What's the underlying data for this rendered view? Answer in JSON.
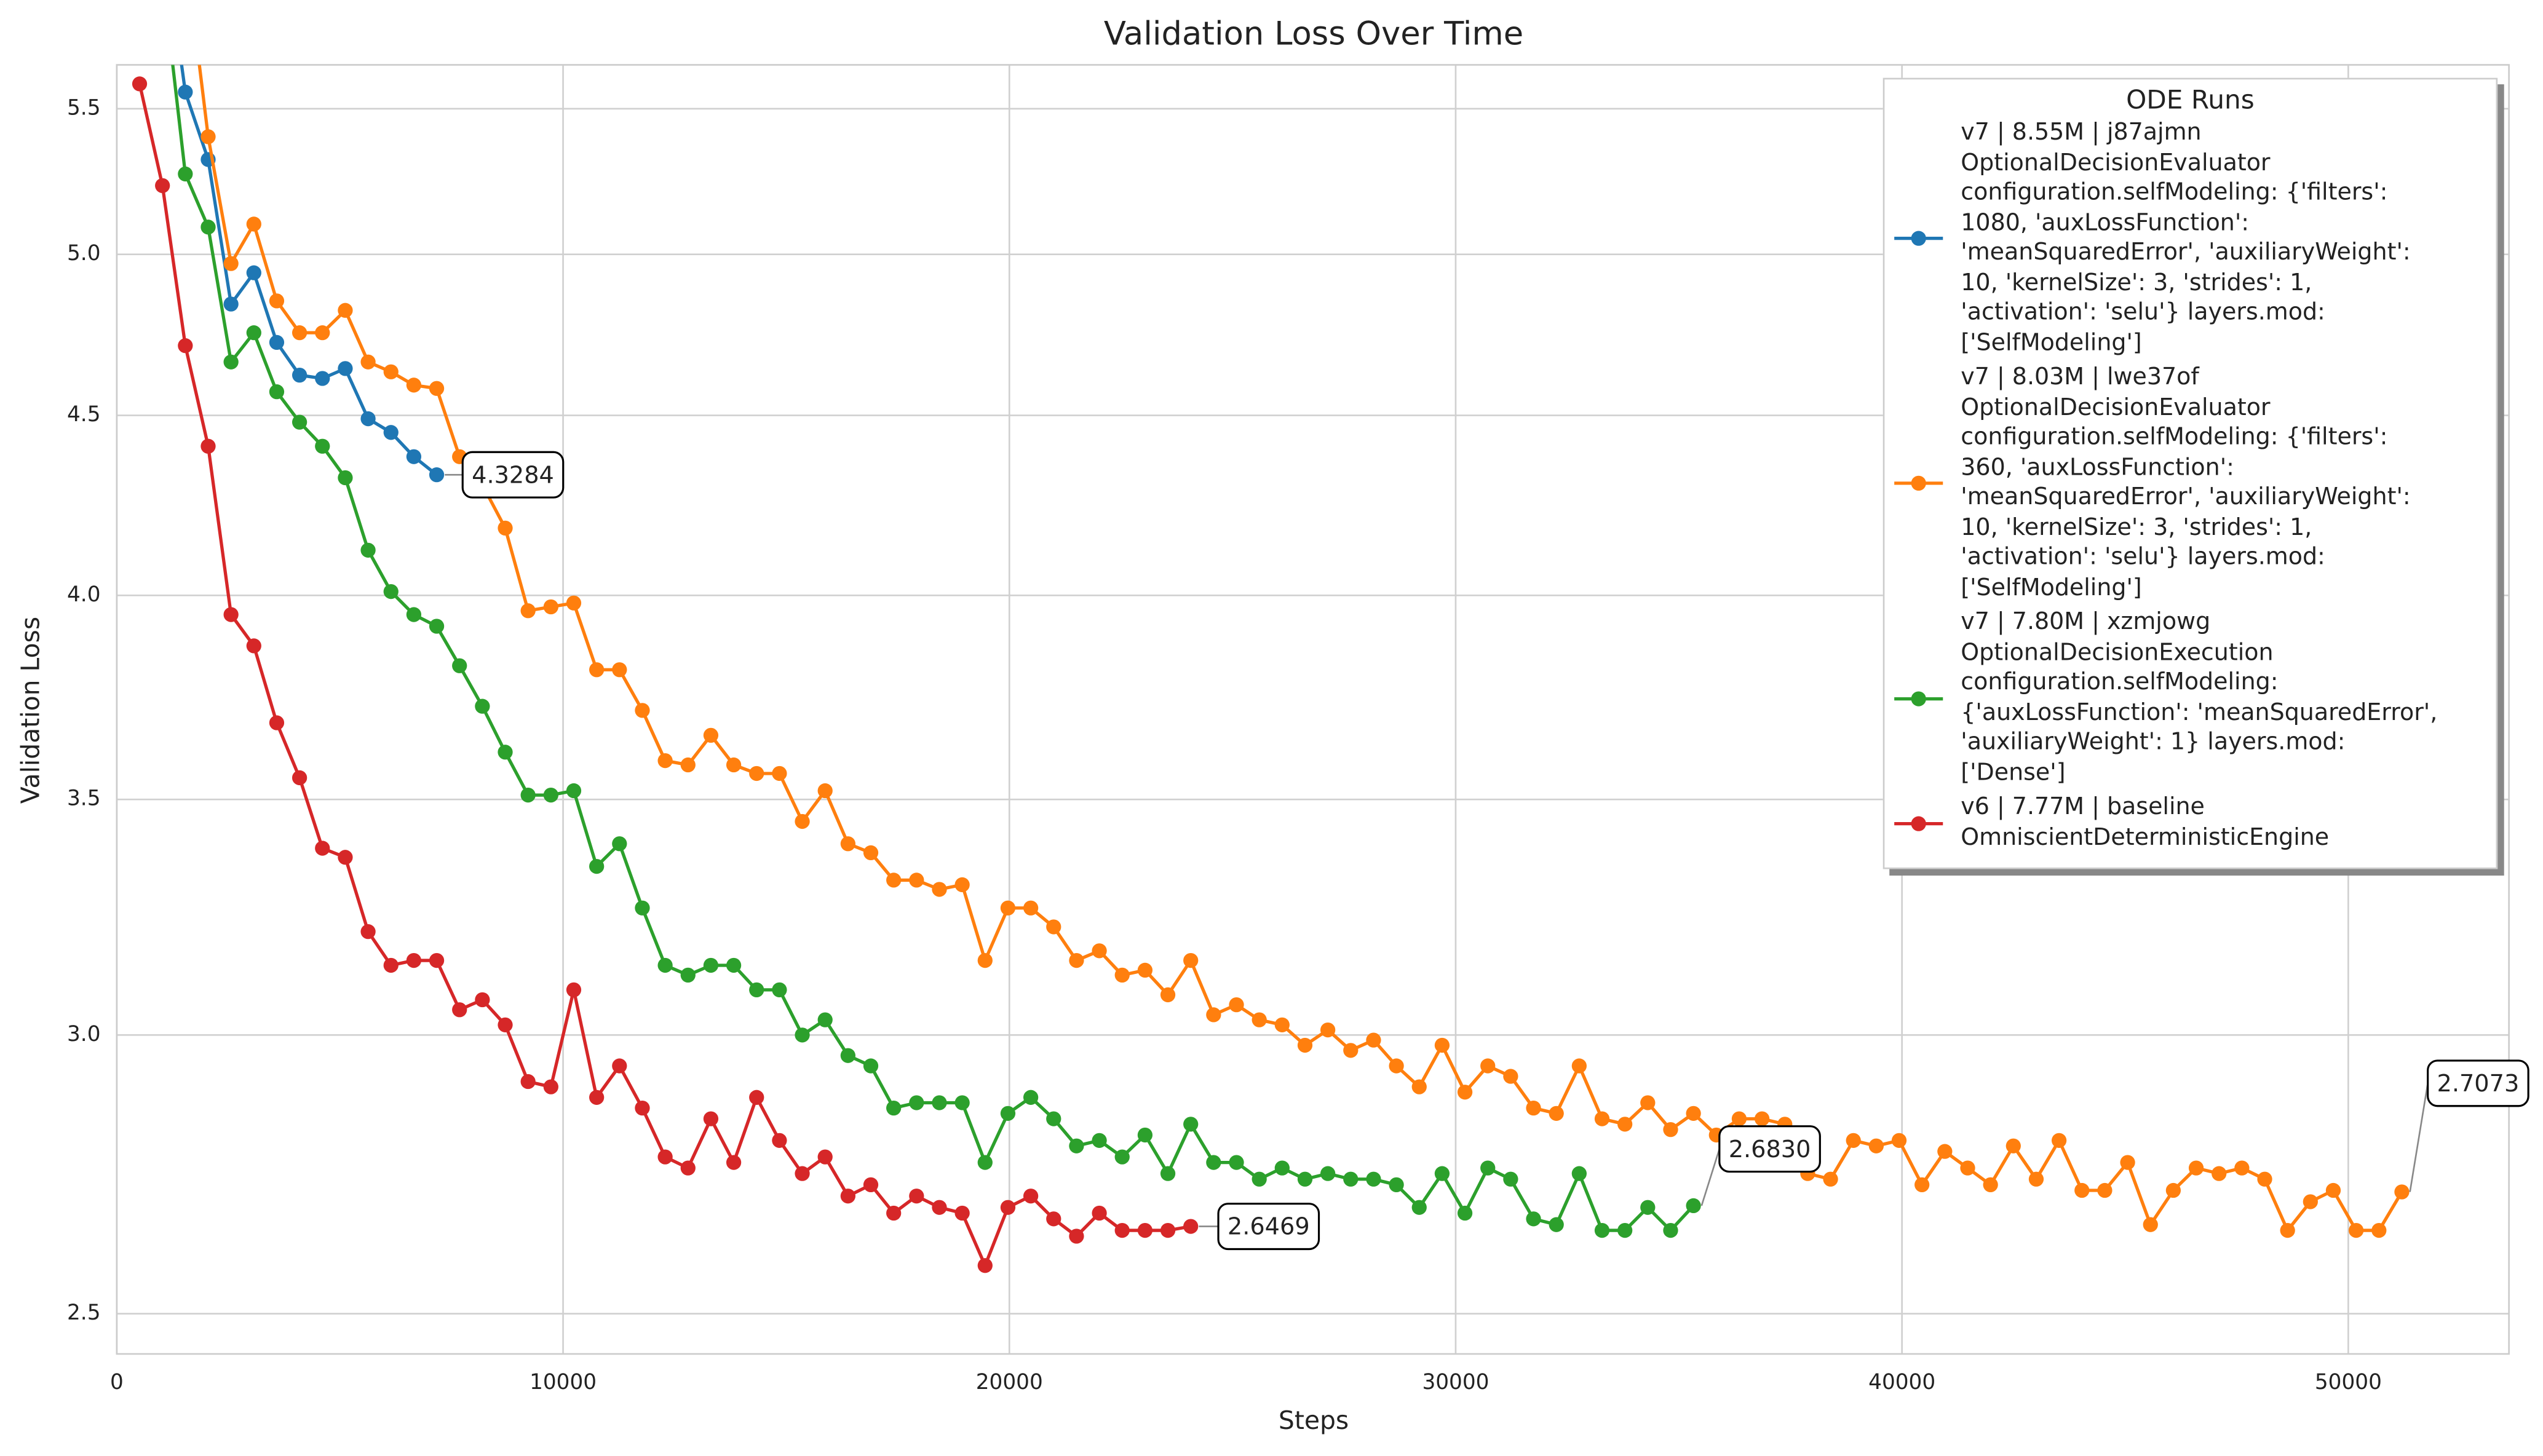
{
  "chart_data": {
    "type": "line",
    "title": "Validation Loss Over Time",
    "x_label": "Steps",
    "y_label": "Validation Loss",
    "legend_title": "ODE Runs",
    "legend_position": "upper right",
    "log_y": true,
    "grid": true,
    "xlim": [
      0,
      53600
    ],
    "ylim": [
      2.435,
      5.66
    ],
    "xticks": [
      0,
      10000,
      20000,
      30000,
      40000,
      50000
    ],
    "yticks": [
      2.5,
      {
        "value": 3,
        "label": "3.0"
      },
      3.5,
      {
        "value": 4,
        "label": "4.0"
      },
      4.5,
      {
        "value": 5,
        "label": "5.0"
      },
      5.5
    ],
    "x": [
      512,
      1024,
      1536,
      2048,
      2560,
      3072,
      3584,
      4096,
      4608,
      5120,
      5632,
      6144,
      6656,
      7168,
      7680,
      8192,
      8704,
      9216,
      9728,
      10240,
      10752,
      11264,
      11776,
      12288,
      12800,
      13312,
      13824,
      14336,
      14848,
      15360,
      15872,
      16384,
      16896,
      17408,
      17920,
      18432,
      18944,
      19456,
      19968,
      20480,
      20992,
      21504,
      22016,
      22528,
      23040,
      23552,
      24064,
      24576,
      25088,
      25600,
      26112,
      26624,
      27136,
      27648,
      28160,
      28672,
      29184,
      29696,
      30208,
      30720,
      31232,
      31744,
      32256,
      32768,
      33280,
      33792,
      34304,
      34816,
      35328,
      35840,
      36352,
      36864,
      37376,
      37888,
      38400,
      38912,
      39424,
      39936,
      40448,
      40960,
      41472,
      41984,
      42496,
      43008,
      43520,
      44032,
      44544,
      45056,
      45568,
      46080,
      46592,
      47104,
      47616,
      48128,
      48640,
      49152,
      49664,
      50176,
      50688,
      51200
    ],
    "series": [
      {
        "name": "v7 | 8.55M | j87ajmn\nOptionalDecisionEvaluator\nconfiguration.selfModeling: {'filters':\n1080, 'auxLossFunction':\n'meanSquaredError', 'auxiliaryWeight':\n10, 'kernelSize': 3, 'strides': 1,\n'activation': 'selu'} layers.mod:\n['SelfModeling']",
        "color": "#1f77b4",
        "annotation": "4.3284",
        "values": [
          null,
          6.2,
          5.56,
          5.32,
          4.84,
          4.94,
          4.72,
          4.62,
          4.61,
          4.64,
          4.49,
          4.45,
          4.38,
          4.3284,
          null,
          null,
          null,
          null,
          null,
          null,
          null,
          null,
          null,
          null,
          null,
          null,
          null,
          null,
          null,
          null,
          null,
          null,
          null,
          null,
          null,
          null,
          null,
          null,
          null,
          null,
          null,
          null,
          null,
          null,
          null,
          null,
          null,
          null,
          null,
          null,
          null,
          null,
          null,
          null,
          null,
          null,
          null,
          null,
          null,
          null,
          null,
          null,
          null,
          null,
          null,
          null,
          null,
          null,
          null,
          null,
          null,
          null,
          null,
          null,
          null,
          null,
          null,
          null,
          null,
          null,
          null,
          null,
          null,
          null,
          null,
          null,
          null,
          null,
          null,
          null,
          null,
          null,
          null,
          null,
          null,
          null,
          null,
          null,
          null,
          null
        ]
      },
      {
        "name": "v7 | 8.03M | lwe37of\nOptionalDecisionEvaluator\nconfiguration.selfModeling: {'filters':\n360, 'auxLossFunction':\n'meanSquaredError', 'auxiliaryWeight':\n10, 'kernelSize': 3, 'strides': 1,\n'activation': 'selu'} layers.mod:\n['SelfModeling']",
        "color": "#ff7f0e",
        "annotation": "2.7073",
        "values": [
          null,
          null,
          6.1,
          5.4,
          4.97,
          5.1,
          4.85,
          4.75,
          4.75,
          4.82,
          4.66,
          4.63,
          4.59,
          4.58,
          4.38,
          4.3,
          4.18,
          3.96,
          3.97,
          3.98,
          3.81,
          3.81,
          3.71,
          3.59,
          3.58,
          3.65,
          3.58,
          3.56,
          3.56,
          3.45,
          3.52,
          3.4,
          3.38,
          3.32,
          3.32,
          3.3,
          3.31,
          3.15,
          3.26,
          3.26,
          3.22,
          3.15,
          3.17,
          3.12,
          3.13,
          3.08,
          3.15,
          3.04,
          3.06,
          3.03,
          3.02,
          2.98,
          3.01,
          2.97,
          2.99,
          2.94,
          2.9,
          2.98,
          2.89,
          2.94,
          2.92,
          2.86,
          2.85,
          2.94,
          2.84,
          2.83,
          2.87,
          2.82,
          2.85,
          2.81,
          2.84,
          2.84,
          2.83,
          2.74,
          2.73,
          2.8,
          2.79,
          2.8,
          2.72,
          2.78,
          2.75,
          2.72,
          2.79,
          2.73,
          2.8,
          2.71,
          2.71,
          2.76,
          2.65,
          2.71,
          2.75,
          2.74,
          2.75,
          2.73,
          2.64,
          2.69,
          2.71,
          2.64,
          2.64,
          2.7073
        ]
      },
      {
        "name": "v7 | 7.80M | xzmjowg\nOptionalDecisionExecution\nconfiguration.selfModeling:\n{'auxLossFunction': 'meanSquaredError',\n'auxiliaryWeight': 1} layers.mod:\n['Dense']",
        "color": "#2ca02c",
        "annotation": "2.6830",
        "values": [
          null,
          6.0,
          5.27,
          5.09,
          4.66,
          4.75,
          4.57,
          4.48,
          4.41,
          4.32,
          4.12,
          4.01,
          3.95,
          3.92,
          3.82,
          3.72,
          3.61,
          3.51,
          3.51,
          3.52,
          3.35,
          3.4,
          3.26,
          3.14,
          3.12,
          3.14,
          3.14,
          3.09,
          3.09,
          3.0,
          3.03,
          2.96,
          2.94,
          2.86,
          2.87,
          2.87,
          2.87,
          2.76,
          2.85,
          2.88,
          2.84,
          2.79,
          2.8,
          2.77,
          2.81,
          2.74,
          2.83,
          2.76,
          2.76,
          2.73,
          2.75,
          2.73,
          2.74,
          2.73,
          2.73,
          2.72,
          2.68,
          2.74,
          2.67,
          2.75,
          2.73,
          2.66,
          2.65,
          2.74,
          2.64,
          2.64,
          2.68,
          2.64,
          2.683,
          null,
          null,
          null,
          null,
          null,
          null,
          null,
          null,
          null,
          null,
          null,
          null,
          null,
          null,
          null,
          null,
          null,
          null,
          null,
          null,
          null,
          null,
          null,
          null,
          null,
          null,
          null,
          null,
          null,
          null,
          null
        ]
      },
      {
        "name": "v6 | 7.77M | baseline\nOmniscientDeterministicEngine",
        "color": "#d62728",
        "annotation": "2.6469",
        "values": [
          5.59,
          5.23,
          4.71,
          4.41,
          3.95,
          3.87,
          3.68,
          3.55,
          3.39,
          3.37,
          3.21,
          3.14,
          3.15,
          3.15,
          3.05,
          3.07,
          3.02,
          2.91,
          2.9,
          3.09,
          2.88,
          2.94,
          2.86,
          2.77,
          2.75,
          2.84,
          2.76,
          2.88,
          2.8,
          2.74,
          2.77,
          2.7,
          2.72,
          2.67,
          2.7,
          2.68,
          2.67,
          2.58,
          2.68,
          2.7,
          2.66,
          2.63,
          2.67,
          2.64,
          2.64,
          2.64,
          2.6469,
          null,
          null,
          null,
          null,
          null,
          null,
          null,
          null,
          null,
          null,
          null,
          null,
          null,
          null,
          null,
          null,
          null,
          null,
          null,
          null,
          null,
          null,
          null,
          null,
          null,
          null,
          null,
          null,
          null,
          null,
          null,
          null,
          null,
          null,
          null,
          null,
          null,
          null,
          null,
          null,
          null,
          null,
          null,
          null,
          null,
          null,
          null,
          null,
          null,
          null,
          null,
          null,
          null
        ]
      }
    ]
  }
}
